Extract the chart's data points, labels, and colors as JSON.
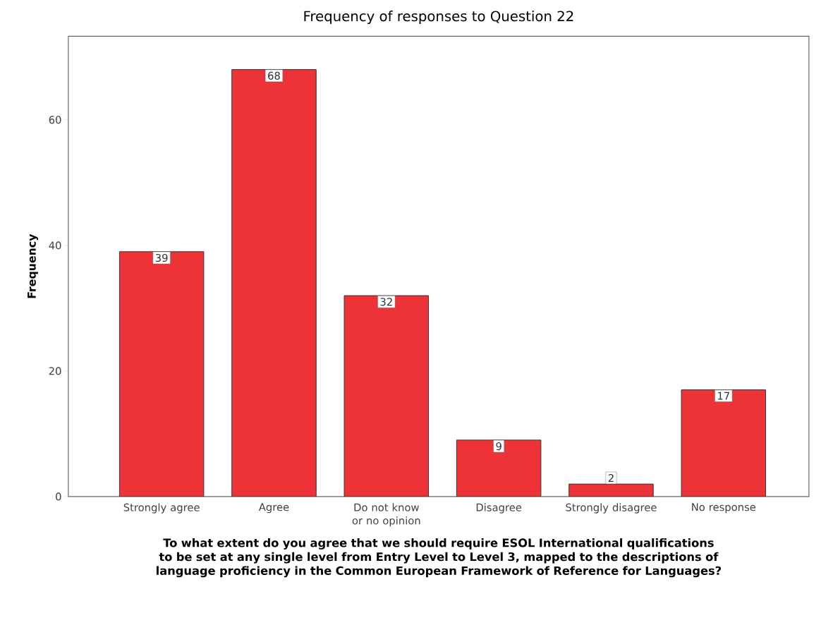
{
  "chart_data": {
    "type": "bar",
    "title": "Frequency of responses to Question 22",
    "xlabel": "To what extent do you agree that we should require ESOL International qualifications to be set at any single level from Entry Level to Level 3, mapped to the descriptions of language proficiency in the  Common European Framework of Reference for Languages?",
    "ylabel": "Frequency",
    "categories": [
      "Strongly agree",
      "Agree",
      "Do not know or no opinion",
      "Disagree",
      "Strongly disagree",
      "No response"
    ],
    "values": [
      39,
      68,
      32,
      9,
      2,
      17
    ],
    "color": "#ee3338",
    "ylim": [
      0,
      73.3
    ],
    "yticks": [
      0,
      20,
      40,
      60
    ],
    "data_labels": true
  }
}
